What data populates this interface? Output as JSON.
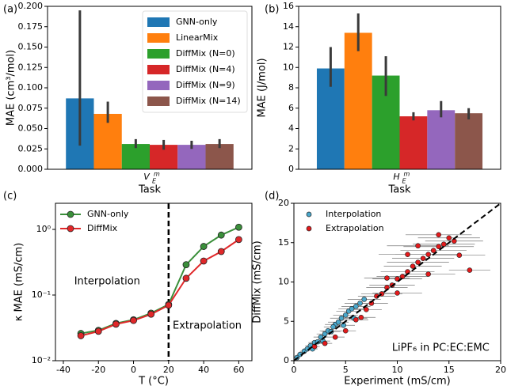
{
  "chart_data": [
    {
      "type": "bar",
      "panel_label": "(a)",
      "y_label": "MAE (cm³/mol)",
      "x_label": "Task",
      "categories": [
        {
          "base": "V",
          "sup": "m",
          "sub": "E"
        }
      ],
      "ylim": [
        0,
        0.2
      ],
      "yticks": [
        {
          "value": 0,
          "label": "0.000"
        },
        {
          "value": 0.025,
          "label": "0.025"
        },
        {
          "value": 0.05,
          "label": "0.050"
        },
        {
          "value": 0.075,
          "label": "0.075"
        },
        {
          "value": 0.1,
          "label": "0.100"
        },
        {
          "value": 0.125,
          "label": "0.125"
        },
        {
          "value": 0.15,
          "label": "0.150"
        },
        {
          "value": 0.175,
          "label": "0.175"
        },
        {
          "value": 0.2,
          "label": "0.200"
        }
      ],
      "legend": "upper right",
      "series": [
        {
          "name": "GNN-only",
          "color": "#1f77b4",
          "values": [
            0.087
          ],
          "ci_low": [
            0.029
          ],
          "ci_high": [
            0.195
          ]
        },
        {
          "name": "LinearMix",
          "color": "#ff7f0e",
          "values": [
            0.068
          ],
          "ci_low": [
            0.057
          ],
          "ci_high": [
            0.083
          ]
        },
        {
          "name": "DiffMix (N=0)",
          "color": "#2ca02c",
          "values": [
            0.031
          ],
          "ci_low": [
            0.026
          ],
          "ci_high": [
            0.037
          ]
        },
        {
          "name": "DiffMix (N=4)",
          "color": "#d62728",
          "values": [
            0.03
          ],
          "ci_low": [
            0.024
          ],
          "ci_high": [
            0.036
          ]
        },
        {
          "name": "DiffMix (N=9)",
          "color": "#9467bd",
          "values": [
            0.03
          ],
          "ci_low": [
            0.025
          ],
          "ci_high": [
            0.035
          ]
        },
        {
          "name": "DiffMix (N=14)",
          "color": "#8c564b",
          "values": [
            0.031
          ],
          "ci_low": [
            0.026
          ],
          "ci_high": [
            0.037
          ]
        }
      ]
    },
    {
      "type": "bar",
      "panel_label": "(b)",
      "y_label": "MAE (J/mol)",
      "x_label": "Task",
      "categories": [
        {
          "base": "H",
          "sup": "m",
          "sub": "E"
        }
      ],
      "ylim": [
        0,
        16
      ],
      "yticks": [
        0,
        2,
        4,
        6,
        8,
        10,
        12,
        14,
        16
      ],
      "series": [
        {
          "color": "#1f77b4",
          "values": [
            9.9
          ],
          "ci_low": [
            8.1
          ],
          "ci_high": [
            12.0
          ]
        },
        {
          "color": "#ff7f0e",
          "values": [
            13.4
          ],
          "ci_low": [
            11.6
          ],
          "ci_high": [
            15.3
          ]
        },
        {
          "color": "#2ca02c",
          "values": [
            9.2
          ],
          "ci_low": [
            7.2
          ],
          "ci_high": [
            11.1
          ]
        },
        {
          "color": "#d62728",
          "values": [
            5.2
          ],
          "ci_low": [
            4.8
          ],
          "ci_high": [
            5.6
          ]
        },
        {
          "color": "#9467bd",
          "values": [
            5.8
          ],
          "ci_low": [
            5.1
          ],
          "ci_high": [
            6.7
          ]
        },
        {
          "color": "#8c564b",
          "values": [
            5.5
          ],
          "ci_low": [
            4.9
          ],
          "ci_high": [
            6.0
          ]
        }
      ]
    },
    {
      "type": "line",
      "panel_label": "(c)",
      "x_label": "T (°C)",
      "y_label": "κ MAE (mS/cm)",
      "x": [
        -30,
        -20,
        -10,
        0,
        10,
        20,
        30,
        40,
        50,
        60
      ],
      "xlim": [
        -44.5,
        67.5
      ],
      "xticks": [
        -40,
        -20,
        0,
        20,
        40,
        60
      ],
      "yscale": "log",
      "ylim": [
        0.01,
        2.5
      ],
      "yticks": [
        {
          "value": 0.01,
          "label": "10⁻²"
        },
        {
          "value": 0.1,
          "label": "10⁻¹"
        },
        {
          "value": 1,
          "label": "10⁰"
        }
      ],
      "vline": 20,
      "legend": "upper left",
      "annotations": [
        {
          "text": "Interpolation",
          "x": -15,
          "y": 0.16
        },
        {
          "text": "Extrapolation",
          "x": 42,
          "y": 0.034
        }
      ],
      "series": [
        {
          "name": "GNN-only",
          "color": "#3a8f3a",
          "values": [
            0.026,
            0.029,
            0.037,
            0.042,
            0.053,
            0.072,
            0.29,
            0.55,
            0.82,
            1.08
          ]
        },
        {
          "name": "DiffMix",
          "color": "#e0282a",
          "values": [
            0.024,
            0.028,
            0.036,
            0.041,
            0.051,
            0.07,
            0.18,
            0.33,
            0.46,
            0.7
          ]
        }
      ]
    },
    {
      "type": "scatter",
      "panel_label": "(d)",
      "x_label": "Experiment (mS/cm)",
      "y_label": "DiffMix (mS/cm)",
      "xlim": [
        0,
        20
      ],
      "ylim": [
        0,
        20
      ],
      "xticks": [
        0,
        5,
        10,
        15,
        20
      ],
      "yticks": [
        0,
        5,
        10,
        15,
        20
      ],
      "diagonal": true,
      "legend": "upper left",
      "annotations": [
        {
          "text": "LiPF₆ in PC:EC:EMC",
          "x": 14.2,
          "y": 1.6
        }
      ],
      "series": [
        {
          "name": "Interpolation",
          "color": "#4aa8cc",
          "x": [
            0.3,
            0.6,
            1,
            1.3,
            1.6,
            2,
            2.3,
            2.6,
            3,
            3.3,
            3.6,
            4,
            4.3,
            4.6,
            5,
            5.3,
            5.6,
            6,
            6.4,
            6.8,
            2.8,
            4.8,
            1.8,
            3.8,
            5.8
          ],
          "y": [
            0.4,
            0.8,
            1.2,
            1.5,
            1.9,
            2.3,
            2.4,
            3.0,
            3.4,
            3.8,
            3.7,
            4.6,
            4.9,
            5.4,
            5.8,
            6.3,
            6.6,
            6.9,
            7.3,
            7.8,
            2.5,
            4.5,
            1.5,
            4.3,
            5.4
          ],
          "xerr": [
            0.2,
            0.3,
            0.4,
            0.4,
            0.5,
            0.6,
            0.6,
            0.7,
            0.8,
            0.8,
            0.9,
            1.0,
            1.0,
            1.1,
            1.2,
            1.2,
            1.3,
            1.4,
            1.5,
            1.6,
            0.7,
            1.1,
            0.5,
            0.9,
            1.3
          ]
        },
        {
          "name": "Extrapolation",
          "color": "#e31a1c",
          "x": [
            2,
            3,
            4,
            5,
            6,
            6.5,
            7,
            7.5,
            8,
            8.5,
            9,
            9.5,
            10,
            10.5,
            11,
            11.5,
            12,
            12.5,
            13,
            13.5,
            14,
            14.5,
            15,
            15.5,
            16,
            17,
            13,
            11,
            9,
            12,
            14,
            10
          ],
          "y": [
            1.8,
            2.2,
            3,
            3.8,
            5.2,
            5.5,
            6.5,
            7.3,
            8.2,
            8.5,
            9.3,
            9.6,
            10.4,
            10.7,
            11.3,
            12,
            12.5,
            13,
            13.5,
            14,
            14.5,
            14.8,
            15.6,
            15.2,
            13.4,
            11.5,
            11,
            13.5,
            10.5,
            14.6,
            16,
            8.6
          ],
          "xerr": [
            0.5,
            0.7,
            0.9,
            1.0,
            1.2,
            1.4,
            1.5,
            1.6,
            1.8,
            2.0,
            2.0,
            2.2,
            2.4,
            2.5,
            2.6,
            2.8,
            3.0,
            3.0,
            3.2,
            3.2,
            3.4,
            3.0,
            3.0,
            2.8,
            2.5,
            2.0,
            2.6,
            2.8,
            2.2,
            3.0,
            3.2,
            2.4
          ]
        }
      ]
    }
  ]
}
